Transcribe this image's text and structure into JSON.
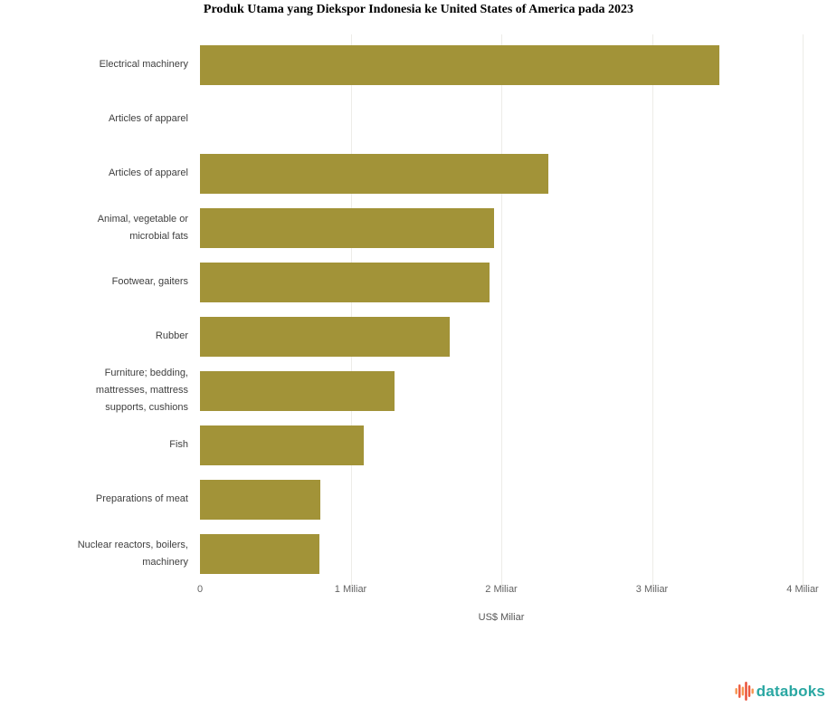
{
  "title": "Produk Utama yang Diekspor Indonesia ke United States of America pada 2023",
  "chart_data": {
    "type": "bar",
    "orientation": "horizontal",
    "title": "Produk Utama yang Diekspor Indonesia ke United States of America pada 2023",
    "categories": [
      "Electrical machinery",
      "Articles of apparel",
      "Articles of apparel",
      "Animal, vegetable or microbial fats",
      "Footwear, gaiters",
      "Rubber",
      "Furniture; bedding, mattresses, mattress supports, cushions",
      "Fish",
      "Preparations of meat",
      "Nuclear reactors, boilers, machinery"
    ],
    "label_lines": [
      [
        "Electrical machinery"
      ],
      [
        "Articles of apparel"
      ],
      [
        "Articles of apparel"
      ],
      [
        "Animal, vegetable or",
        "microbial fats"
      ],
      [
        "Footwear, gaiters"
      ],
      [
        "Rubber"
      ],
      [
        "Furniture; bedding,",
        "mattresses, mattress",
        "supports, cushions"
      ],
      [
        "Fish"
      ],
      [
        "Preparations of meat"
      ],
      [
        "Nuclear reactors, boilers,",
        "machinery"
      ]
    ],
    "values": [
      3.45,
      0,
      2.31,
      1.95,
      1.92,
      1.66,
      1.29,
      1.09,
      0.8,
      0.79
    ],
    "unit": "US$ Miliar",
    "xlabel": "US$ Miliar",
    "x_ticks": [
      "0",
      "1 Miliar",
      "2 Miliar",
      "3 Miliar",
      "4 Miliar"
    ],
    "xlim": [
      0,
      4
    ],
    "grid": "vertical-only",
    "legend": "none",
    "bar_color": "#a29338"
  },
  "colors": {
    "background": "#ffffff",
    "bar": "#a29338",
    "gridline": "#edece8",
    "category_label": "#404040",
    "tick_label": "#636363",
    "brand_text": "#2aa7a2",
    "brand_icon": "#ef5a3e"
  },
  "branding": {
    "logo_text": "databoks",
    "icon": "databoks-bars-icon"
  }
}
